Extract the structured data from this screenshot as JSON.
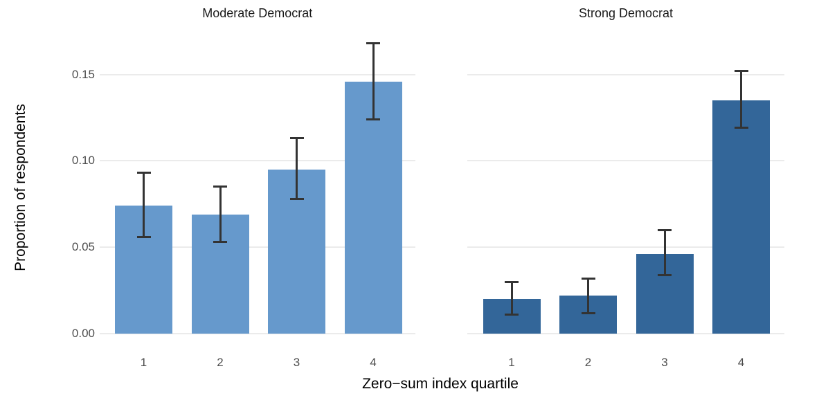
{
  "chart_data": {
    "type": "bar",
    "title": "",
    "xlabel": "Zero−sum index quartile",
    "ylabel": "Proportion of respondents",
    "categories": [
      "1",
      "2",
      "3",
      "4"
    ],
    "ytick_values": [
      0.0,
      0.05,
      0.1,
      0.15
    ],
    "ytick_labels": [
      "0.00",
      "0.05",
      "0.10",
      "0.15"
    ],
    "ylim": [
      0,
      0.177
    ],
    "grid": true,
    "legend_position": "none",
    "error_bars": true,
    "error_bar_color": "#333333",
    "facets": [
      {
        "title": "Moderate Democrat",
        "bar_color": "#6699CC",
        "categories": [
          "1",
          "2",
          "3",
          "4"
        ],
        "values": [
          0.074,
          0.069,
          0.095,
          0.146
        ],
        "ci_low": [
          0.056,
          0.053,
          0.078,
          0.124
        ],
        "ci_high": [
          0.093,
          0.085,
          0.113,
          0.168
        ]
      },
      {
        "title": "Strong Democrat",
        "bar_color": "#336699",
        "categories": [
          "1",
          "2",
          "3",
          "4"
        ],
        "values": [
          0.02,
          0.022,
          0.046,
          0.135
        ],
        "ci_low": [
          0.011,
          0.012,
          0.034,
          0.119
        ],
        "ci_high": [
          0.03,
          0.032,
          0.06,
          0.152
        ]
      }
    ]
  },
  "colors": {
    "background": "#FFFFFF",
    "gridline": "#EBEBEB",
    "axis_text": "#4D4D4D",
    "title_text": "#1A1A1A"
  }
}
